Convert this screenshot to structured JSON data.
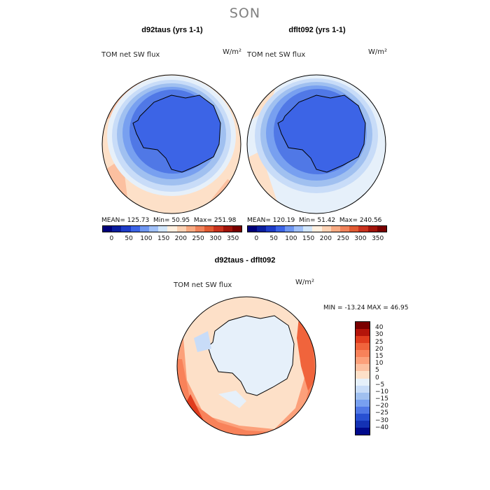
{
  "page": {
    "title": "SON"
  },
  "panels": [
    {
      "title": "d92taus (yrs 1-1)",
      "variable": "TOM net SW flux",
      "units": "W/m²",
      "stats": {
        "mean_label": "MEAN=",
        "mean": "125.73",
        "min_label": "Min=",
        "min": "50.95",
        "max_label": "Max=",
        "max": "251.98"
      }
    },
    {
      "title": "dflt092 (yrs 1-1)",
      "variable": "TOM net SW flux",
      "units": "W/m²",
      "stats": {
        "mean_label": "MEAN=",
        "mean": "120.19",
        "min_label": "Min=",
        "min": "51.42",
        "max_label": "Max=",
        "max": "240.56"
      }
    },
    {
      "title": "d92taus - dflt092",
      "variable": "TOM net SW flux",
      "units": "W/m²",
      "stats": {
        "min_label": "MIN =",
        "min": "-13.24",
        "max_label": "MAX =",
        "max": "46.95"
      }
    }
  ],
  "chart_data": [
    {
      "type": "heatmap",
      "projection": "south-polar-stereographic",
      "title": "d92taus (yrs 1-1)",
      "variable": "TOM net SW flux",
      "units": "W/m2",
      "mean": 125.73,
      "min": 50.95,
      "max": 251.98,
      "colorbar_ticks": [
        "0",
        "50",
        "100",
        "150",
        "200",
        "250",
        "300",
        "350"
      ],
      "colorbar_range": [
        0,
        350
      ]
    },
    {
      "type": "heatmap",
      "projection": "south-polar-stereographic",
      "title": "dflt092 (yrs 1-1)",
      "variable": "TOM net SW flux",
      "units": "W/m2",
      "mean": 120.19,
      "min": 51.42,
      "max": 240.56,
      "colorbar_ticks": [
        "0",
        "50",
        "100",
        "150",
        "200",
        "250",
        "300",
        "350"
      ],
      "colorbar_range": [
        0,
        350
      ]
    },
    {
      "type": "heatmap",
      "projection": "south-polar-stereographic",
      "title": "d92taus - dflt092",
      "variable": "TOM net SW flux",
      "units": "W/m2",
      "min": -13.24,
      "max": 46.95,
      "colorbar_ticks": [
        "40",
        "30",
        "25",
        "20",
        "15",
        "10",
        "5",
        "0",
        "−5",
        "−10",
        "−15",
        "−20",
        "−25",
        "−30",
        "−40"
      ]
    }
  ],
  "colors": {
    "abs_scale": [
      "#00007a",
      "#0a1e9e",
      "#1e3cc8",
      "#3c64e6",
      "#6e96f0",
      "#a0c0f8",
      "#d2e6fa",
      "#fff0e0",
      "#fcd2b4",
      "#f8aa82",
      "#f0825a",
      "#e05a32",
      "#c8321e",
      "#a0140a",
      "#780000"
    ],
    "diff_scale": [
      "#7a0000",
      "#b4140a",
      "#e03c1e",
      "#f0643c",
      "#f8825a",
      "#fca07a",
      "#fcc0a0",
      "#fde0c8",
      "#e6f0fa",
      "#c8dcf8",
      "#a0c0f0",
      "#78a0f0",
      "#5078e6",
      "#2850d2",
      "#1432b4",
      "#000a8c"
    ]
  }
}
